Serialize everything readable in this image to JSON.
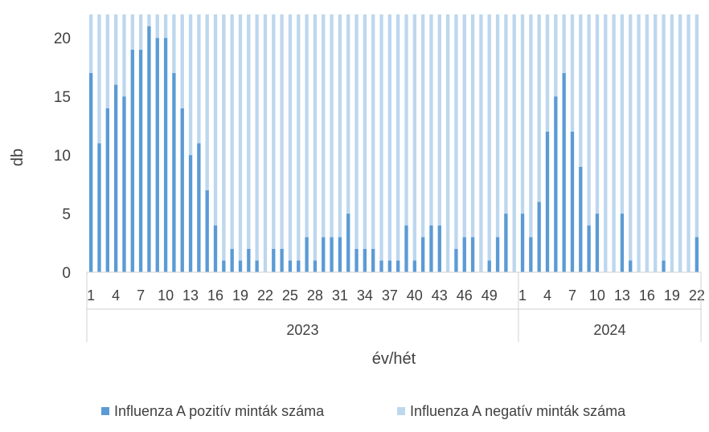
{
  "chart_data": {
    "type": "bar",
    "stacked": true,
    "ylabel": "db",
    "xlabel": "év/hét",
    "ylim": [
      0,
      22
    ],
    "yticks": [
      0,
      5,
      10,
      15,
      20
    ],
    "grid": false,
    "legend_position": "bottom",
    "groups": [
      {
        "label": "2023",
        "weeks": [
          1,
          2,
          3,
          4,
          5,
          6,
          7,
          8,
          9,
          10,
          11,
          12,
          13,
          14,
          15,
          16,
          17,
          18,
          19,
          20,
          21,
          22,
          23,
          24,
          25,
          26,
          27,
          28,
          29,
          30,
          31,
          32,
          33,
          34,
          35,
          36,
          37,
          38,
          39,
          40,
          41,
          42,
          43,
          44,
          45,
          46,
          47,
          48,
          49,
          50,
          51,
          52
        ]
      },
      {
        "label": "2024",
        "weeks": [
          1,
          2,
          3,
          4,
          5,
          6,
          7,
          8,
          9,
          10,
          11,
          12,
          13,
          14,
          15,
          16,
          17,
          18,
          19,
          20,
          21,
          22
        ]
      }
    ],
    "tick_labels": [
      [
        "1",
        "4",
        "7",
        "10",
        "13",
        "16",
        "19",
        "22",
        "25",
        "28",
        "31",
        "34",
        "37",
        "40",
        "43",
        "46",
        "49"
      ],
      [
        "1",
        "4",
        "7",
        "10",
        "13",
        "16",
        "19",
        "22"
      ]
    ],
    "series": [
      {
        "name": "Influenza A pozitív minták száma",
        "color": "#5b9bd5",
        "values": [
          17,
          11,
          14,
          16,
          15,
          19,
          19,
          21,
          20,
          20,
          17,
          14,
          10,
          11,
          7,
          4,
          1,
          2,
          1,
          2,
          1,
          0,
          2,
          2,
          1,
          1,
          3,
          1,
          3,
          3,
          3,
          5,
          2,
          2,
          2,
          1,
          1,
          1,
          4,
          1,
          3,
          4,
          4,
          0,
          2,
          3,
          3,
          0,
          1,
          3,
          5,
          0,
          5,
          3,
          6,
          12,
          15,
          17,
          12,
          9,
          4,
          5,
          0,
          0,
          5,
          1,
          0,
          0,
          0,
          1,
          0,
          0,
          0,
          3
        ]
      },
      {
        "name": "Influenza A negatív minták száma",
        "color": "#bdd7ee",
        "values": [
          5,
          11,
          8,
          6,
          7,
          3,
          3,
          1,
          2,
          2,
          5,
          8,
          12,
          11,
          15,
          18,
          21,
          20,
          21,
          20,
          21,
          22,
          20,
          20,
          21,
          21,
          19,
          21,
          19,
          19,
          19,
          17,
          20,
          20,
          20,
          21,
          21,
          21,
          18,
          21,
          19,
          18,
          18,
          22,
          20,
          19,
          19,
          22,
          21,
          19,
          17,
          22,
          17,
          19,
          16,
          10,
          7,
          5,
          10,
          13,
          18,
          17,
          22,
          22,
          17,
          21,
          22,
          22,
          22,
          21,
          22,
          22,
          22,
          19
        ]
      }
    ]
  }
}
